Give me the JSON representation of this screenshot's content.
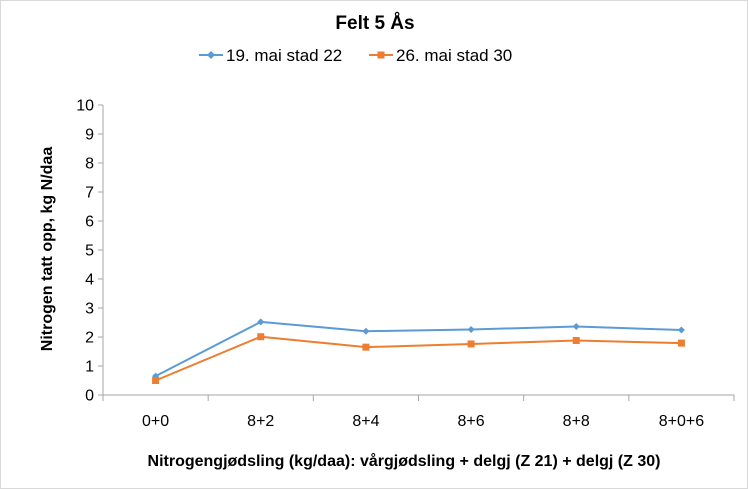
{
  "chart_data": {
    "type": "line",
    "title": "Felt 5 Ås",
    "xlabel": "Nitrogengjødsling (kg/daa): vårgjødsling + delgj (Z 21) + delgj (Z 30)",
    "ylabel": "Nitrogen tatt opp, kg N/daa",
    "categories": [
      "0+0",
      "8+2",
      "8+4",
      "8+6",
      "8+8",
      "8+0+6"
    ],
    "ylim": [
      0,
      10
    ],
    "yticks": [
      "0",
      "1",
      "2",
      "3",
      "4",
      "5",
      "6",
      "7",
      "8",
      "9",
      "10"
    ],
    "grid": false,
    "legend_position": "top",
    "series": [
      {
        "name": "19. mai stad 22",
        "color": "#5b9bd5",
        "marker": "diamond",
        "values": [
          0.65,
          2.52,
          2.2,
          2.26,
          2.36,
          2.24
        ]
      },
      {
        "name": "26. mai stad 30",
        "color": "#ed7d31",
        "marker": "square",
        "values": [
          0.5,
          2.01,
          1.65,
          1.76,
          1.88,
          1.79
        ]
      }
    ]
  }
}
